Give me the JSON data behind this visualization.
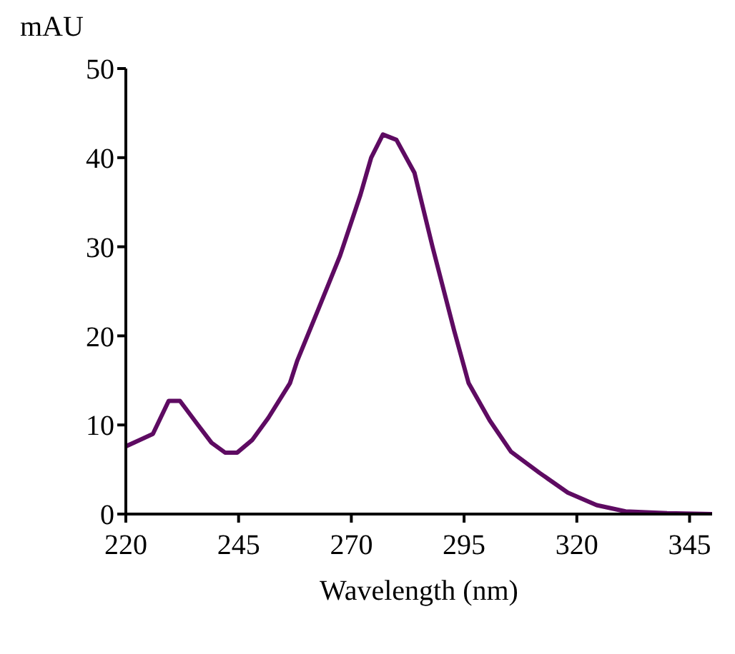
{
  "chart_data": {
    "type": "line",
    "xlabel": "Wavelength (nm)",
    "ylabel": "mAU",
    "x": [
      220,
      223,
      226,
      229.5,
      232,
      236,
      239,
      242,
      244.7,
      248,
      251.6,
      256.4,
      258,
      262.7,
      267.5,
      272,
      274.4,
      277,
      280,
      284,
      288,
      292.8,
      296,
      300.7,
      305.4,
      311.8,
      318,
      324.4,
      330.8,
      340,
      350
    ],
    "series": [
      {
        "color": "#5e0b62",
        "values": [
          7.6,
          8.3,
          9,
          12.7,
          12.7,
          10,
          8,
          6.9,
          6.9,
          8.3,
          10.8,
          14.7,
          17.2,
          23,
          29,
          35.8,
          40,
          42.6,
          42,
          38.3,
          30,
          20.6,
          14.7,
          10.5,
          7,
          4.6,
          2.4,
          1,
          0.3,
          0.1,
          0
        ]
      }
    ],
    "xlim": [
      220,
      350
    ],
    "xticks": [
      220,
      245,
      270,
      295,
      320,
      345
    ],
    "ylim": [
      0,
      50
    ],
    "yticks": [
      0,
      10,
      20,
      30,
      40,
      50
    ],
    "grid": false,
    "legend": false,
    "marker": "none",
    "line_style": "solid"
  }
}
